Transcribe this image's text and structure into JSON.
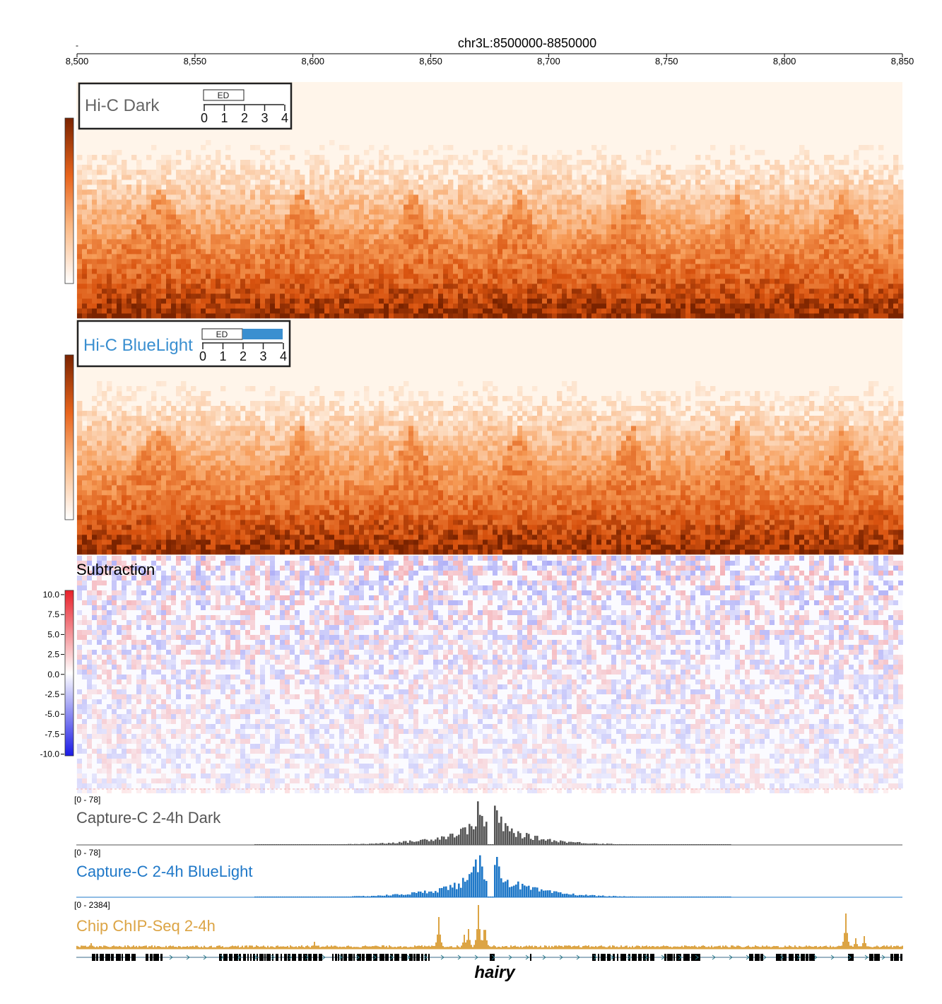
{
  "browser": {
    "region_label": "chr3L:8500000-8850000",
    "dash": "-",
    "start": 8500,
    "end": 8850,
    "ticks": [
      "8,500",
      "8,550",
      "8,600",
      "8,650",
      "8,700",
      "8,750",
      "8,800",
      "8,850"
    ],
    "tick_values": [
      8500,
      8550,
      8600,
      8650,
      8700,
      8750,
      8800,
      8850
    ]
  },
  "colors": {
    "hic_dark": "#7a2300",
    "hic_mid": "#e8641c",
    "hic_light": "#fff5ea",
    "bluelight": "#3a8fd0",
    "capture_dark": "#555555",
    "capture_blue": "#1f78c8",
    "chip": "#dca444",
    "sub_pos": "#e8202a",
    "sub_neg": "#1a1ae6"
  },
  "hic_dark": {
    "title": "Hi-C Dark",
    "legend_box": "ED",
    "scale": [
      "0",
      "1",
      "2",
      "3",
      "4"
    ],
    "bar_fraction": 0
  },
  "hic_blue": {
    "title": "Hi-C BlueLight",
    "legend_box": "ED",
    "scale": [
      "0",
      "1",
      "2",
      "3",
      "4"
    ],
    "bar_fraction": 0.5
  },
  "subtraction": {
    "title": "Subtraction",
    "colorbar_ticks": [
      "10.0",
      "7.5",
      "5.0",
      "2.5",
      "0.0",
      "-2.5",
      "-5.0",
      "-7.5",
      "-10.0"
    ]
  },
  "tracks": {
    "capture_dark": {
      "range": "[0 - 78]",
      "label": "Capture-C 2-4h Dark"
    },
    "capture_blue": {
      "range": "[0 - 78]",
      "label": "Capture-C 2-4h BlueLight"
    },
    "chip": {
      "range": "[0 - 2384]",
      "label": "Chip ChIP-Seq 2-4h"
    }
  },
  "genes": {
    "highlight_label": "hairy"
  },
  "chart_data": {
    "type": "heatmap",
    "title": "chr3L:8500000-8850000",
    "x_range": [
      8500,
      8850
    ],
    "tad_peaks_kb": [
      8500,
      8570,
      8620,
      8665,
      8710,
      8760,
      8800,
      8850
    ],
    "capture_peaks_kb": [
      8670,
      8677
    ]
  }
}
